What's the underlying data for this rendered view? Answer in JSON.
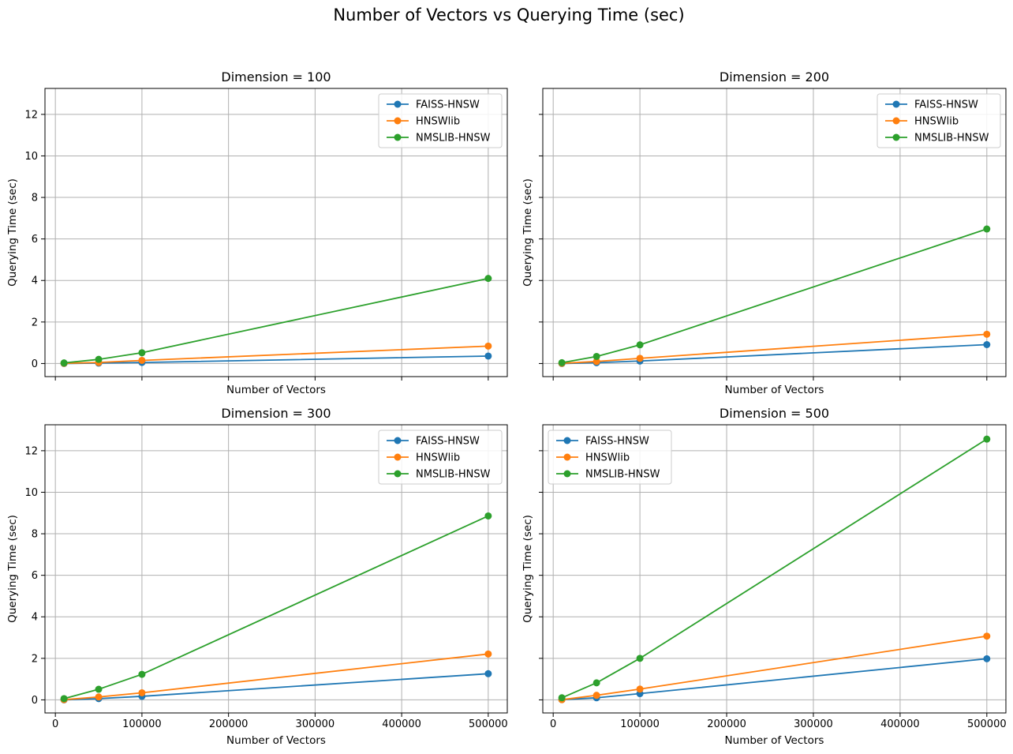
{
  "figure": {
    "title": "Number of Vectors vs Querying Time (sec)"
  },
  "colors": {
    "FAISS-HNSW": "#1f77b4",
    "HNSWlib": "#ff7f0e",
    "NMSLIB-HNSW": "#2ca02c",
    "grid": "#b0b0b0"
  },
  "chart_data": [
    {
      "type": "line",
      "title": "Dimension = 100",
      "xlabel": "Number of Vectors",
      "ylabel": "Querying Time (sec)",
      "x": [
        10000,
        50000,
        100000,
        500000
      ],
      "xlim": [
        -12000,
        522000
      ],
      "ylim": [
        -0.63,
        13.25
      ],
      "xticks": [
        0,
        100000,
        200000,
        300000,
        400000,
        500000
      ],
      "xtick_labels_shown": false,
      "yticks": [
        0,
        2,
        4,
        6,
        8,
        10,
        12
      ],
      "ytick_labels_shown": true,
      "grid": true,
      "legend_position": "upper right",
      "series": [
        {
          "name": "FAISS-HNSW",
          "values": [
            0.0,
            0.02,
            0.05,
            0.36
          ]
        },
        {
          "name": "HNSWlib",
          "values": [
            0.01,
            0.05,
            0.15,
            0.84
          ]
        },
        {
          "name": "NMSLIB-HNSW",
          "values": [
            0.03,
            0.2,
            0.52,
            4.1
          ]
        }
      ]
    },
    {
      "type": "line",
      "title": "Dimension = 200",
      "xlabel": "Number of Vectors",
      "ylabel": "Querying Time (sec)",
      "x": [
        10000,
        50000,
        100000,
        500000
      ],
      "xlim": [
        -12000,
        522000
      ],
      "ylim": [
        -0.63,
        13.25
      ],
      "xticks": [
        0,
        100000,
        200000,
        300000,
        400000,
        500000
      ],
      "xtick_labels_shown": false,
      "yticks": [
        0,
        2,
        4,
        6,
        8,
        10,
        12
      ],
      "ytick_labels_shown": false,
      "grid": true,
      "legend_position": "upper right",
      "series": [
        {
          "name": "FAISS-HNSW",
          "values": [
            0.0,
            0.04,
            0.12,
            0.91
          ]
        },
        {
          "name": "HNSWlib",
          "values": [
            0.01,
            0.1,
            0.25,
            1.41
          ]
        },
        {
          "name": "NMSLIB-HNSW",
          "values": [
            0.04,
            0.34,
            0.9,
            6.48
          ]
        }
      ]
    },
    {
      "type": "line",
      "title": "Dimension = 300",
      "xlabel": "Number of Vectors",
      "ylabel": "Querying Time (sec)",
      "x": [
        10000,
        50000,
        100000,
        500000
      ],
      "xlim": [
        -12000,
        522000
      ],
      "ylim": [
        -0.63,
        13.25
      ],
      "xticks": [
        0,
        100000,
        200000,
        300000,
        400000,
        500000
      ],
      "xtick_labels": [
        "0",
        "100000",
        "200000",
        "300000",
        "400000",
        "500000"
      ],
      "xtick_labels_shown": true,
      "yticks": [
        0,
        2,
        4,
        6,
        8,
        10,
        12
      ],
      "ytick_labels_shown": true,
      "grid": true,
      "legend_position": "upper right",
      "series": [
        {
          "name": "FAISS-HNSW",
          "values": [
            0.0,
            0.06,
            0.17,
            1.26
          ]
        },
        {
          "name": "HNSWlib",
          "values": [
            0.01,
            0.14,
            0.34,
            2.21
          ]
        },
        {
          "name": "NMSLIB-HNSW",
          "values": [
            0.06,
            0.51,
            1.23,
            8.86
          ]
        }
      ]
    },
    {
      "type": "line",
      "title": "Dimension = 500",
      "xlabel": "Number of Vectors",
      "ylabel": "Querying Time (sec)",
      "x": [
        10000,
        50000,
        100000,
        500000
      ],
      "xlim": [
        -12000,
        522000
      ],
      "ylim": [
        -0.63,
        13.25
      ],
      "xticks": [
        0,
        100000,
        200000,
        300000,
        400000,
        500000
      ],
      "xtick_labels": [
        "0",
        "100000",
        "200000",
        "300000",
        "400000",
        "500000"
      ],
      "xtick_labels_shown": true,
      "yticks": [
        0,
        2,
        4,
        6,
        8,
        10,
        12
      ],
      "ytick_labels_shown": false,
      "grid": true,
      "legend_position": "upper left",
      "series": [
        {
          "name": "FAISS-HNSW",
          "values": [
            0.01,
            0.1,
            0.3,
            1.98
          ]
        },
        {
          "name": "HNSWlib",
          "values": [
            0.01,
            0.22,
            0.52,
            3.07
          ]
        },
        {
          "name": "NMSLIB-HNSW",
          "values": [
            0.1,
            0.82,
            2.0,
            12.56
          ]
        }
      ]
    }
  ]
}
